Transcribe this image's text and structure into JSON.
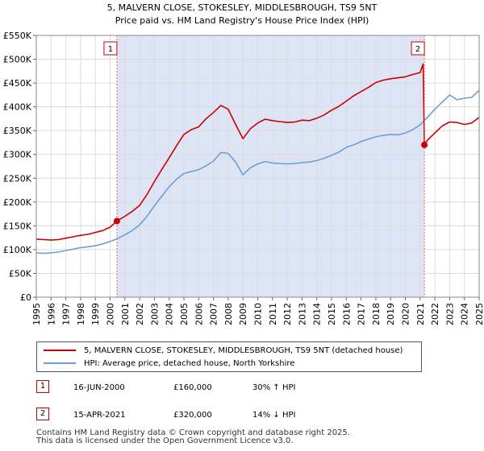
{
  "chart_data": {
    "type": "line",
    "title": "5, MALVERN CLOSE, STOKESLEY, MIDDLESBROUGH, TS9 5NT",
    "subtitle": "Price paid vs. HM Land Registry's House Price Index (HPI)",
    "xlim": [
      1995.0,
      2025.0
    ],
    "ylim": [
      0,
      550000
    ],
    "yticks": [
      {
        "value": 0,
        "label": "£0"
      },
      {
        "value": 50000,
        "label": "£50K"
      },
      {
        "value": 100000,
        "label": "£100K"
      },
      {
        "value": 150000,
        "label": "£150K"
      },
      {
        "value": 200000,
        "label": "£200K"
      },
      {
        "value": 250000,
        "label": "£250K"
      },
      {
        "value": 300000,
        "label": "£300K"
      },
      {
        "value": 350000,
        "label": "£350K"
      },
      {
        "value": 400000,
        "label": "£400K"
      },
      {
        "value": 450000,
        "label": "£450K"
      },
      {
        "value": 500000,
        "label": "£500K"
      },
      {
        "value": 550000,
        "label": "£550K"
      }
    ],
    "xticks": [
      "1995",
      "1996",
      "1997",
      "1998",
      "1999",
      "2000",
      "2001",
      "2002",
      "2003",
      "2004",
      "2005",
      "2006",
      "2007",
      "2008",
      "2009",
      "2010",
      "2011",
      "2012",
      "2013",
      "2014",
      "2015",
      "2016",
      "2017",
      "2018",
      "2019",
      "2020",
      "2021",
      "2022",
      "2023",
      "2024",
      "2025"
    ],
    "grid": true,
    "ownership_shading": {
      "from": 2000.46,
      "to": 2021.29,
      "color": "#dde4f6"
    },
    "series": [
      {
        "name": "5, MALVERN CLOSE, STOKESLEY, MIDDLESBROUGH, TS9 5NT (detached house)",
        "color": "#cc0000",
        "x": [
          1995.0,
          1995.5,
          1996.0,
          1996.5,
          1997.0,
          1997.5,
          1998.0,
          1998.5,
          1999.0,
          1999.5,
          2000.0,
          2000.46,
          2001.0,
          2001.5,
          2002.0,
          2002.5,
          2003.0,
          2003.5,
          2004.0,
          2004.5,
          2005.0,
          2005.5,
          2006.0,
          2006.5,
          2007.0,
          2007.5,
          2008.0,
          2008.5,
          2009.0,
          2009.5,
          2010.0,
          2010.5,
          2011.0,
          2011.5,
          2012.0,
          2012.5,
          2013.0,
          2013.5,
          2014.0,
          2014.5,
          2015.0,
          2015.5,
          2016.0,
          2016.5,
          2017.0,
          2017.5,
          2018.0,
          2018.5,
          2019.0,
          2019.5,
          2020.0,
          2020.5,
          2021.0,
          2021.2,
          2021.29,
          2021.5,
          2022.0,
          2022.5,
          2023.0,
          2023.5,
          2024.0,
          2024.5,
          2025.0
        ],
        "values": [
          122000,
          121000,
          120000,
          121000,
          124000,
          127000,
          130000,
          132000,
          136000,
          140000,
          147000,
          160000,
          170000,
          180000,
          193000,
          216000,
          243000,
          268000,
          293000,
          318000,
          342000,
          352000,
          358000,
          375000,
          388000,
          403000,
          395000,
          363000,
          333000,
          354000,
          366000,
          374000,
          371000,
          369000,
          367000,
          368000,
          372000,
          371000,
          376000,
          383000,
          393000,
          401000,
          412000,
          423000,
          432000,
          441000,
          451000,
          456000,
          459000,
          461000,
          463000,
          468000,
          472000,
          490000,
          320000,
          330000,
          345000,
          360000,
          368000,
          367000,
          363000,
          366000,
          378000
        ]
      },
      {
        "name": "HPI: Average price, detached house, North Yorkshire",
        "color": "#6d9fd3",
        "x": [
          1995.0,
          1995.5,
          1996.0,
          1996.5,
          1997.0,
          1997.5,
          1998.0,
          1998.5,
          1999.0,
          1999.5,
          2000.0,
          2000.5,
          2001.0,
          2001.5,
          2002.0,
          2002.5,
          2003.0,
          2003.5,
          2004.0,
          2004.5,
          2005.0,
          2005.5,
          2006.0,
          2006.5,
          2007.0,
          2007.5,
          2008.0,
          2008.5,
          2009.0,
          2009.5,
          2010.0,
          2010.5,
          2011.0,
          2011.5,
          2012.0,
          2012.5,
          2013.0,
          2013.5,
          2014.0,
          2014.5,
          2015.0,
          2015.5,
          2016.0,
          2016.5,
          2017.0,
          2017.5,
          2018.0,
          2018.5,
          2019.0,
          2019.5,
          2020.0,
          2020.5,
          2021.0,
          2021.5,
          2022.0,
          2022.5,
          2023.0,
          2023.5,
          2024.0,
          2024.5,
          2025.0
        ],
        "values": [
          93000,
          92000,
          93000,
          95000,
          98000,
          101000,
          104000,
          106000,
          108000,
          112000,
          117000,
          123000,
          131000,
          140000,
          152000,
          170000,
          192000,
          212000,
          232000,
          248000,
          260000,
          264000,
          268000,
          276000,
          286000,
          304000,
          302000,
          284000,
          257000,
          272000,
          280000,
          285000,
          282000,
          281000,
          280000,
          281000,
          283000,
          284000,
          287000,
          292000,
          298000,
          305000,
          315000,
          320000,
          327000,
          332000,
          337000,
          340000,
          342000,
          341000,
          345000,
          352000,
          362000,
          378000,
          395000,
          410000,
          425000,
          415000,
          418000,
          420000,
          435000
        ]
      }
    ],
    "sales": [
      {
        "marker": "1",
        "x": 2000.46,
        "price": 160000
      },
      {
        "marker": "2",
        "x": 2021.29,
        "price": 320000
      }
    ]
  },
  "legend": [
    {
      "label": "5, MALVERN CLOSE, STOKESLEY, MIDDLESBROUGH, TS9 5NT (detached house)",
      "color": "#cc0000"
    },
    {
      "label": "HPI: Average price, detached house, North Yorkshire",
      "color": "#6d9fd3"
    }
  ],
  "transactions": [
    {
      "marker": "1",
      "date": "16-JUN-2000",
      "price": "£160,000",
      "hpi": "30% ↑ HPI"
    },
    {
      "marker": "2",
      "date": "15-APR-2021",
      "price": "£320,000",
      "hpi": "14% ↓ HPI"
    }
  ],
  "footer": {
    "line1": "Contains HM Land Registry data © Crown copyright and database right 2025.",
    "line2": "This data is licensed under the Open Government Licence v3.0."
  }
}
